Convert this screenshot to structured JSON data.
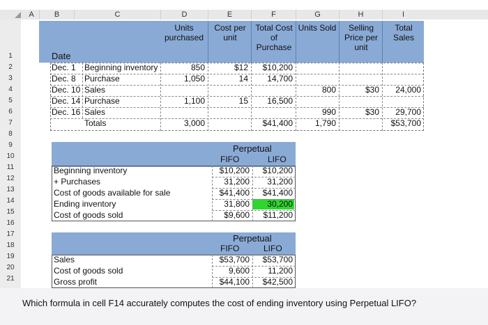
{
  "columns": [
    "A",
    "B",
    "C",
    "D",
    "E",
    "F",
    "G",
    "H",
    "I"
  ],
  "rows": [
    "1",
    "2",
    "3",
    "4",
    "5",
    "6",
    "7",
    "8",
    "9",
    "10",
    "11",
    "12",
    "13",
    "14",
    "15",
    "16",
    "17",
    "18",
    "19",
    "20",
    "21"
  ],
  "headers": {
    "d": "Units purchased",
    "e": "Cost per unit",
    "f": "Total Cost of Purchase",
    "g": "Units Sold",
    "h": "Selling Price per unit",
    "i": "Total Sales"
  },
  "date_label": "Date",
  "table": [
    {
      "date": "Dec. 1",
      "desc": "Beginning inventory",
      "units": "850",
      "cost": "$12",
      "total": "$10,200",
      "sold": "",
      "price": "",
      "sales": ""
    },
    {
      "date": "Dec. 8",
      "desc": "Purchase",
      "units": "1,050",
      "cost": "14",
      "total": "14,700",
      "sold": "",
      "price": "",
      "sales": ""
    },
    {
      "date": "Dec. 10",
      "desc": "Sales",
      "units": "",
      "cost": "",
      "total": "",
      "sold": "800",
      "price": "$30",
      "sales": "24,000"
    },
    {
      "date": "Dec. 14",
      "desc": "Purchase",
      "units": "1,100",
      "cost": "15",
      "total": "16,500",
      "sold": "",
      "price": "",
      "sales": ""
    },
    {
      "date": "Dec. 16",
      "desc": "Sales",
      "units": "",
      "cost": "",
      "total": "",
      "sold": "990",
      "price": "$30",
      "sales": "29,700"
    }
  ],
  "totals": {
    "label": "Totals",
    "units": "3,000",
    "total": "$41,400",
    "sold": "1,790",
    "sales": "$53,700"
  },
  "perpetual1": {
    "title": "Perpetual",
    "fifo": "FIFO",
    "lifo": "LIFO",
    "rows": [
      {
        "label": "Beginning inventory",
        "fifo": "$10,200",
        "lifo": "$10,200"
      },
      {
        "label": "+ Purchases",
        "fifo": "31,200",
        "lifo": "31,200"
      },
      {
        "label": "Cost of goods available for sale",
        "fifo": "$41,400",
        "lifo": "$41,400"
      },
      {
        "label": "Ending inventory",
        "fifo": "31,800",
        "lifo": "30,200"
      },
      {
        "label": "Cost of goods sold",
        "fifo": "$9,600",
        "lifo": "$11,200"
      }
    ]
  },
  "perpetual2": {
    "title": "Perpetual",
    "fifo": "FIFO",
    "lifo": "LIFO",
    "rows": [
      {
        "label": "Sales",
        "fifo": "$53,700",
        "lifo": "$53,700"
      },
      {
        "label": "Cost of goods sold",
        "fifo": "9,600",
        "lifo": "11,200"
      },
      {
        "label": "Gross profit",
        "fifo": "$44,100",
        "lifo": "$42,500"
      }
    ]
  },
  "question": "Which formula in cell F14 accurately computes the cost of ending inventory using Perpetual LIFO?",
  "colors": {
    "header_band": "#8aaad6",
    "highlight": "#2fd62f"
  }
}
